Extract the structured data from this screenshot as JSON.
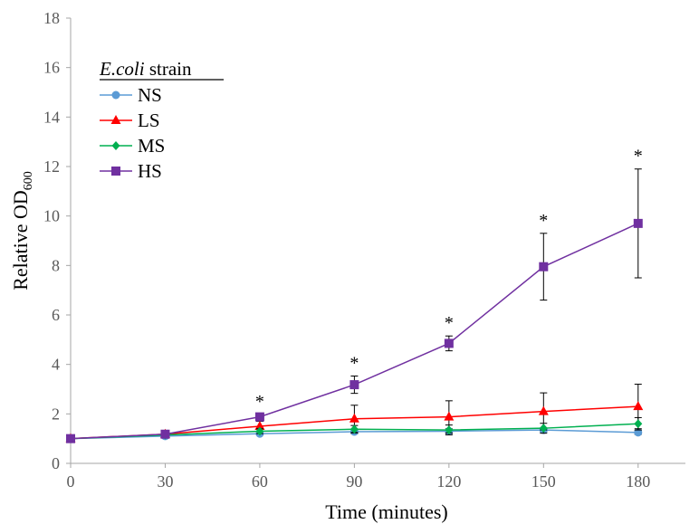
{
  "chart_data": {
    "type": "line",
    "xlabel": "Time (minutes)",
    "ylabel": "Relative OD",
    "ylabel_subscript": "600",
    "xlim": [
      0,
      195
    ],
    "ylim": [
      0,
      18
    ],
    "xticks": [
      0,
      30,
      60,
      90,
      120,
      150,
      180
    ],
    "yticks": [
      0,
      2,
      4,
      6,
      8,
      10,
      12,
      14,
      16,
      18
    ],
    "grid": false,
    "legend": {
      "title_italic": "E.coli",
      "title_rest": " strain",
      "placement": "top-left"
    },
    "x": [
      0,
      30,
      60,
      90,
      120,
      150,
      180
    ],
    "series": [
      {
        "name": "NS",
        "color": "#5B9BD5",
        "marker": "circle",
        "values": [
          1.0,
          1.1,
          1.2,
          1.28,
          1.3,
          1.35,
          1.25
        ],
        "errors": [
          0,
          0.05,
          0.05,
          0.08,
          0.1,
          0.08,
          0.08
        ]
      },
      {
        "name": "LS",
        "color": "#FF0000",
        "marker": "triangle",
        "values": [
          1.0,
          1.18,
          1.5,
          1.8,
          1.88,
          2.1,
          2.3
        ],
        "errors": [
          0,
          0.05,
          0.2,
          0.55,
          0.65,
          0.75,
          0.9
        ]
      },
      {
        "name": "MS",
        "color": "#00B050",
        "marker": "diamond",
        "values": [
          1.0,
          1.15,
          1.3,
          1.38,
          1.35,
          1.42,
          1.6
        ],
        "errors": [
          0,
          0.05,
          0.1,
          0.15,
          0.2,
          0.2,
          0.25
        ]
      },
      {
        "name": "HS",
        "color": "#7030A0",
        "marker": "square",
        "values": [
          1.0,
          1.18,
          1.88,
          3.18,
          4.85,
          7.95,
          9.7
        ],
        "errors": [
          0,
          0.05,
          0.1,
          0.35,
          0.3,
          1.35,
          2.2
        ]
      }
    ],
    "annotations": [
      {
        "x": 60,
        "text": "*"
      },
      {
        "x": 90,
        "text": "*"
      },
      {
        "x": 120,
        "text": "*"
      },
      {
        "x": 150,
        "text": "*"
      },
      {
        "x": 180,
        "text": "*"
      }
    ]
  }
}
